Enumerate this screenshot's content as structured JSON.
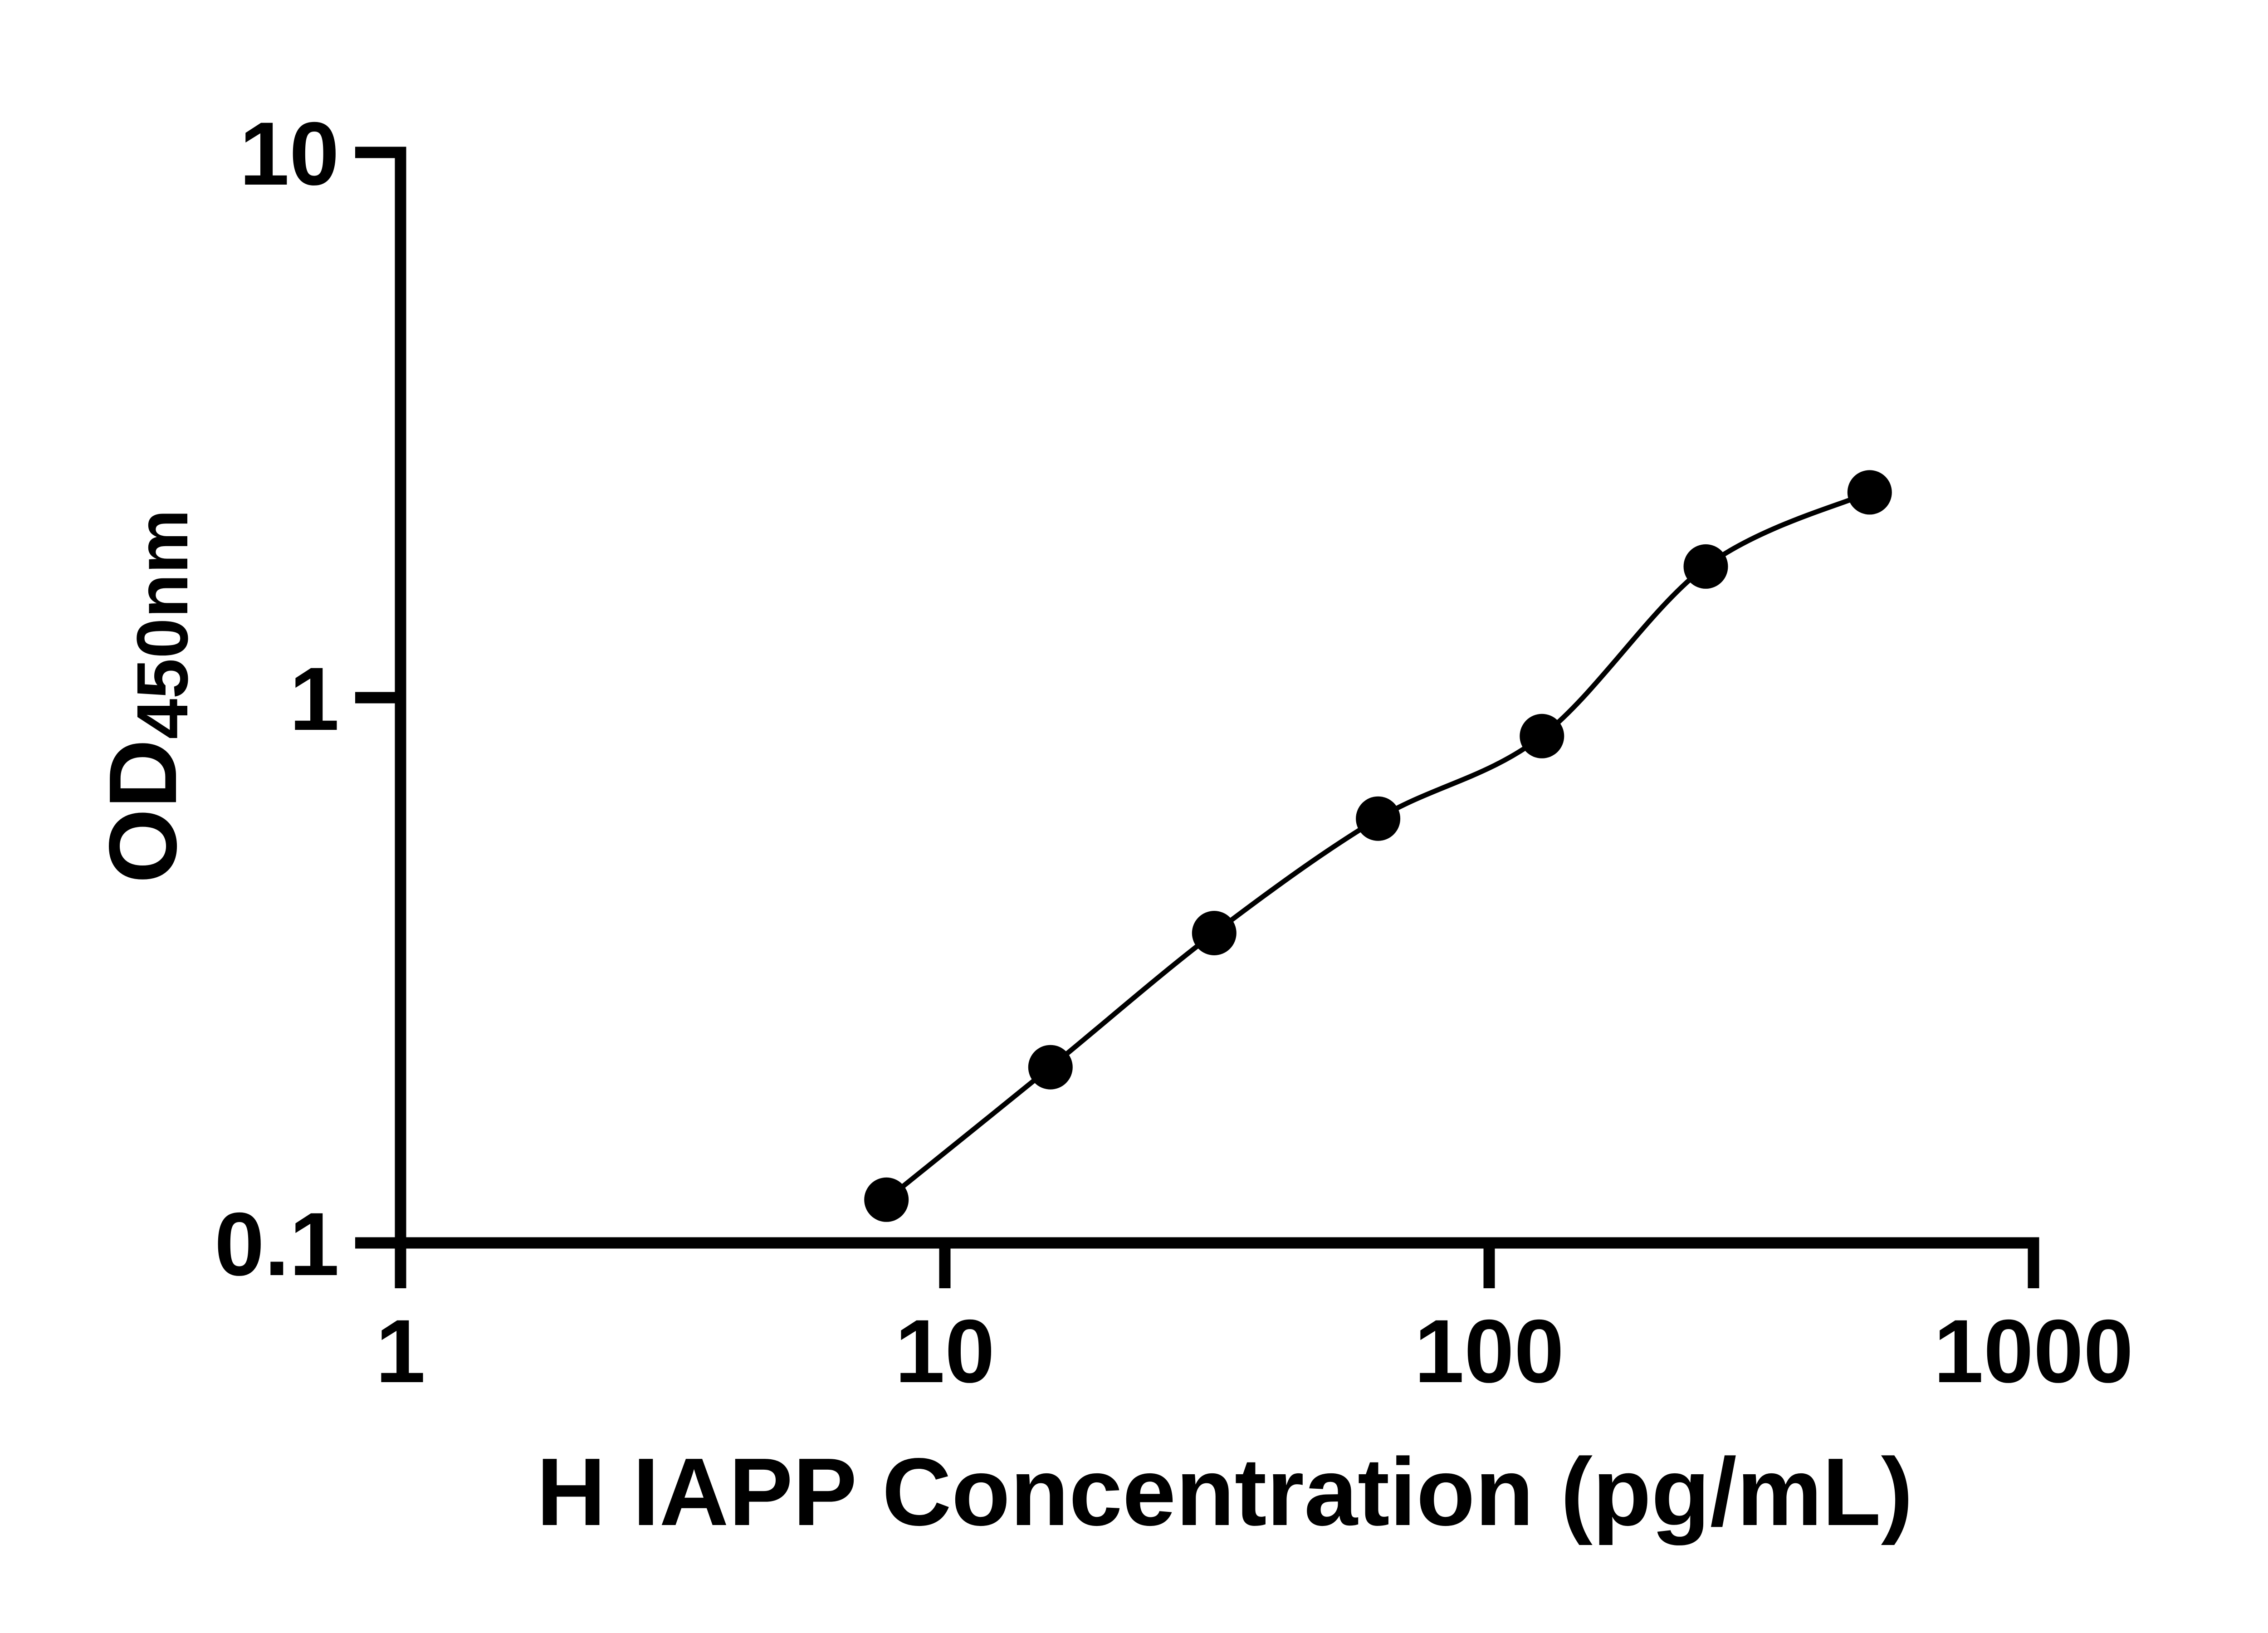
{
  "figure": {
    "background_color": "#ffffff",
    "foreground_color": "#000000"
  },
  "chart_data": {
    "type": "scatter",
    "subtype": "elisa-standard-curve-with-fit-line",
    "title": "",
    "xlabel": "H IAPP Concentration (pg/mL)",
    "ylabel": "OD450nm",
    "ylabel_parts": {
      "main": "OD",
      "subscript": "450nm"
    },
    "x_scale": "log10",
    "y_scale": "log10",
    "xlim": [
      1,
      1000
    ],
    "ylim": [
      0.1,
      10
    ],
    "x_ticks": [
      1,
      10,
      100,
      1000
    ],
    "x_tick_labels": [
      "1",
      "10",
      "100",
      "1000"
    ],
    "y_ticks": [
      10,
      1,
      0.1
    ],
    "y_tick_labels": [
      "10",
      "1",
      "0.1"
    ],
    "grid": false,
    "minor_ticks": false,
    "legend": false,
    "marker": {
      "shape": "circle",
      "color": "#000000"
    },
    "line": {
      "style": "solid",
      "color": "#000000"
    },
    "series": [
      {
        "name": "standard-curve",
        "points": [
          {
            "x": 7.81,
            "y": 0.12
          },
          {
            "x": 15.63,
            "y": 0.21
          },
          {
            "x": 31.25,
            "y": 0.37
          },
          {
            "x": 62.5,
            "y": 0.6
          },
          {
            "x": 125,
            "y": 0.85
          },
          {
            "x": 250,
            "y": 1.74
          },
          {
            "x": 500,
            "y": 2.38
          }
        ]
      }
    ]
  }
}
